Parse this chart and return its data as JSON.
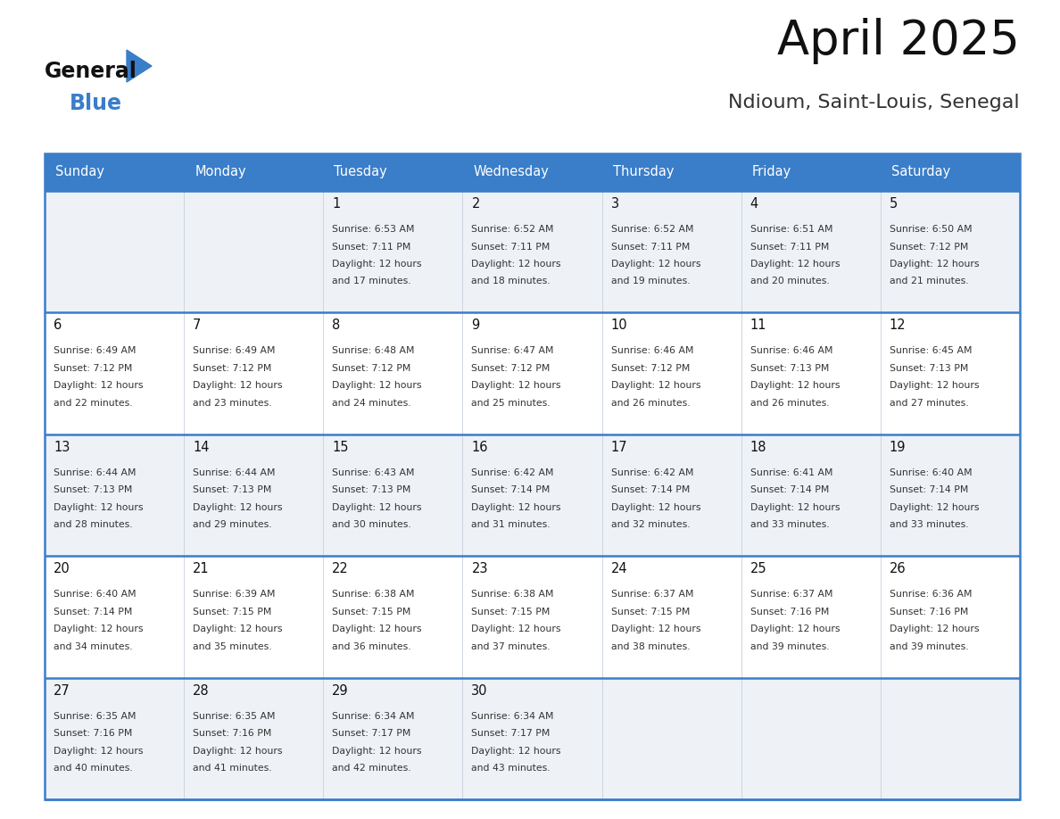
{
  "title": "April 2025",
  "subtitle": "Ndioum, Saint-Louis, Senegal",
  "days_of_week": [
    "Sunday",
    "Monday",
    "Tuesday",
    "Wednesday",
    "Thursday",
    "Friday",
    "Saturday"
  ],
  "header_bg": "#3A7DC9",
  "header_text": "#FFFFFF",
  "row_bg_light": "#EEF2F7",
  "row_bg_white": "#FFFFFF",
  "cell_text_color": "#333333",
  "date_text_color": "#111111",
  "divider_color": "#3A7DC9",
  "calendar_data": [
    [
      {
        "day": null,
        "sunrise": null,
        "sunset": null,
        "daylight_min": null
      },
      {
        "day": null,
        "sunrise": null,
        "sunset": null,
        "daylight_min": null
      },
      {
        "day": 1,
        "sunrise": "6:53 AM",
        "sunset": "7:11 PM",
        "daylight_min": 17
      },
      {
        "day": 2,
        "sunrise": "6:52 AM",
        "sunset": "7:11 PM",
        "daylight_min": 18
      },
      {
        "day": 3,
        "sunrise": "6:52 AM",
        "sunset": "7:11 PM",
        "daylight_min": 19
      },
      {
        "day": 4,
        "sunrise": "6:51 AM",
        "sunset": "7:11 PM",
        "daylight_min": 20
      },
      {
        "day": 5,
        "sunrise": "6:50 AM",
        "sunset": "7:12 PM",
        "daylight_min": 21
      }
    ],
    [
      {
        "day": 6,
        "sunrise": "6:49 AM",
        "sunset": "7:12 PM",
        "daylight_min": 22
      },
      {
        "day": 7,
        "sunrise": "6:49 AM",
        "sunset": "7:12 PM",
        "daylight_min": 23
      },
      {
        "day": 8,
        "sunrise": "6:48 AM",
        "sunset": "7:12 PM",
        "daylight_min": 24
      },
      {
        "day": 9,
        "sunrise": "6:47 AM",
        "sunset": "7:12 PM",
        "daylight_min": 25
      },
      {
        "day": 10,
        "sunrise": "6:46 AM",
        "sunset": "7:12 PM",
        "daylight_min": 26
      },
      {
        "day": 11,
        "sunrise": "6:46 AM",
        "sunset": "7:13 PM",
        "daylight_min": 26
      },
      {
        "day": 12,
        "sunrise": "6:45 AM",
        "sunset": "7:13 PM",
        "daylight_min": 27
      }
    ],
    [
      {
        "day": 13,
        "sunrise": "6:44 AM",
        "sunset": "7:13 PM",
        "daylight_min": 28
      },
      {
        "day": 14,
        "sunrise": "6:44 AM",
        "sunset": "7:13 PM",
        "daylight_min": 29
      },
      {
        "day": 15,
        "sunrise": "6:43 AM",
        "sunset": "7:13 PM",
        "daylight_min": 30
      },
      {
        "day": 16,
        "sunrise": "6:42 AM",
        "sunset": "7:14 PM",
        "daylight_min": 31
      },
      {
        "day": 17,
        "sunrise": "6:42 AM",
        "sunset": "7:14 PM",
        "daylight_min": 32
      },
      {
        "day": 18,
        "sunrise": "6:41 AM",
        "sunset": "7:14 PM",
        "daylight_min": 33
      },
      {
        "day": 19,
        "sunrise": "6:40 AM",
        "sunset": "7:14 PM",
        "daylight_min": 33
      }
    ],
    [
      {
        "day": 20,
        "sunrise": "6:40 AM",
        "sunset": "7:14 PM",
        "daylight_min": 34
      },
      {
        "day": 21,
        "sunrise": "6:39 AM",
        "sunset": "7:15 PM",
        "daylight_min": 35
      },
      {
        "day": 22,
        "sunrise": "6:38 AM",
        "sunset": "7:15 PM",
        "daylight_min": 36
      },
      {
        "day": 23,
        "sunrise": "6:38 AM",
        "sunset": "7:15 PM",
        "daylight_min": 37
      },
      {
        "day": 24,
        "sunrise": "6:37 AM",
        "sunset": "7:15 PM",
        "daylight_min": 38
      },
      {
        "day": 25,
        "sunrise": "6:37 AM",
        "sunset": "7:16 PM",
        "daylight_min": 39
      },
      {
        "day": 26,
        "sunrise": "6:36 AM",
        "sunset": "7:16 PM",
        "daylight_min": 39
      }
    ],
    [
      {
        "day": 27,
        "sunrise": "6:35 AM",
        "sunset": "7:16 PM",
        "daylight_min": 40
      },
      {
        "day": 28,
        "sunrise": "6:35 AM",
        "sunset": "7:16 PM",
        "daylight_min": 41
      },
      {
        "day": 29,
        "sunrise": "6:34 AM",
        "sunset": "7:17 PM",
        "daylight_min": 42
      },
      {
        "day": 30,
        "sunrise": "6:34 AM",
        "sunset": "7:17 PM",
        "daylight_min": 43
      },
      {
        "day": null,
        "sunrise": null,
        "sunset": null,
        "daylight_min": null
      },
      {
        "day": null,
        "sunrise": null,
        "sunset": null,
        "daylight_min": null
      },
      {
        "day": null,
        "sunrise": null,
        "sunset": null,
        "daylight_min": null
      }
    ]
  ],
  "logo_color1": "#111111",
  "logo_color2": "#3A7DC9",
  "logo_triangle_color": "#3A7DC9",
  "fig_width": 11.88,
  "fig_height": 9.18,
  "dpi": 100
}
